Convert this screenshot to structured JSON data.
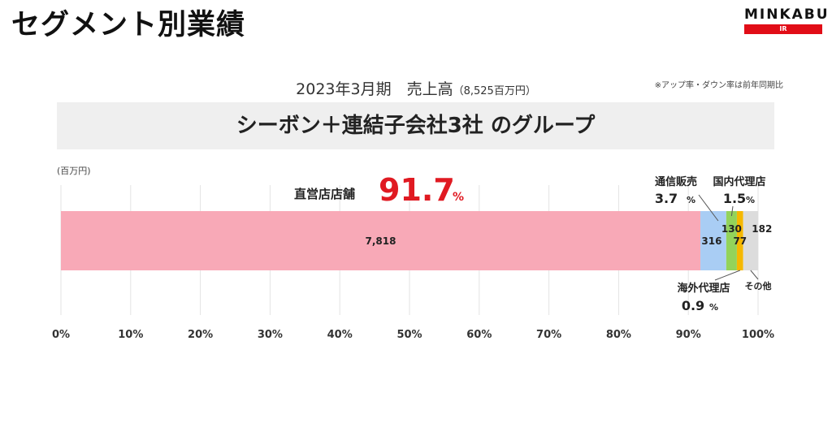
{
  "page": {
    "title": "セグメント別業績",
    "period_label": "2023年3月期　売上高",
    "total_label": "（8,525百万円）",
    "note": "※アップ率・ダウン率は前年同期比",
    "group_label": "シーボン＋連結子会社3社 のグループ"
  },
  "brand": {
    "name": "MINKABU",
    "sub": "IR"
  },
  "chart_data": {
    "type": "bar",
    "orientation": "horizontal-stacked-percent",
    "unit_label": "(百万円)",
    "x_ticks": [
      "0%",
      "10%",
      "20%",
      "30%",
      "40%",
      "50%",
      "60%",
      "70%",
      "80%",
      "90%",
      "100%"
    ],
    "xlim": [
      0,
      100
    ],
    "grid": true,
    "total": 8525,
    "series": [
      {
        "name": "直営店店舗",
        "value": 7818,
        "value_label": "7,818",
        "share": "91.7",
        "color": "#f8a9b7"
      },
      {
        "name": "通信販売",
        "value": 316,
        "value_label": "316",
        "share": "3.7",
        "color": "#a9cdf4"
      },
      {
        "name": "国内代理店",
        "value": 130,
        "value_label": "130",
        "share": "1.5",
        "color": "#93d35a"
      },
      {
        "name": "海外代理店",
        "value": 77,
        "value_label": "77",
        "share": "0.9",
        "color": "#f5b800"
      },
      {
        "name": "その他",
        "value": 182,
        "value_label": "182",
        "share": "",
        "color": "#dcdcdc"
      }
    ],
    "percent_suffix": "%",
    "accent_color": "#e01a22"
  }
}
